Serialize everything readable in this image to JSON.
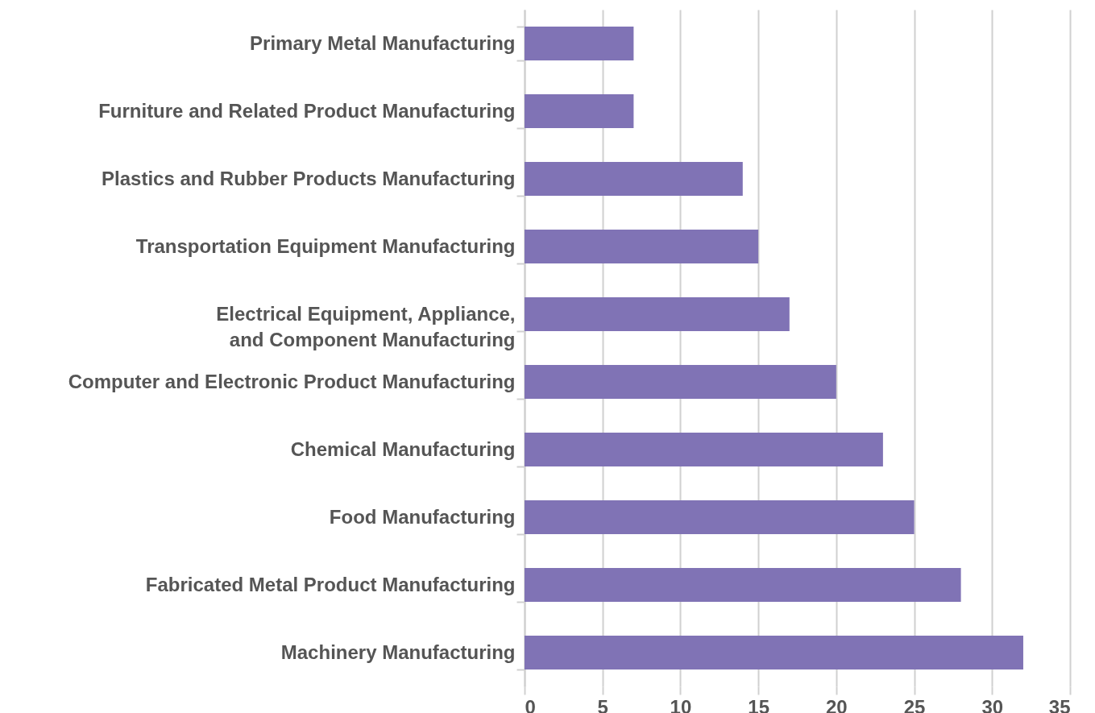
{
  "chart_data": {
    "type": "bar",
    "orientation": "horizontal",
    "categories": [
      "Primary Metal Manufacturing",
      "Furniture and Related Product Manufacturing",
      "Plastics and Rubber Products Manufacturing",
      "Transportation Equipment Manufacturing",
      "Electrical Equipment, Appliance,\nand Component Manufacturing",
      "Computer and Electronic Product Manufacturing",
      "Chemical Manufacturing",
      "Food Manufacturing",
      "Fabricated Metal Product Manufacturing",
      "Machinery Manufacturing"
    ],
    "values": [
      7,
      7,
      14,
      15,
      17,
      20,
      23,
      25,
      28,
      32
    ],
    "color": "#8073b5",
    "xlim": [
      0,
      35
    ],
    "xticks": [
      0,
      5,
      10,
      15,
      20,
      25,
      30,
      35
    ],
    "grid": "x"
  }
}
